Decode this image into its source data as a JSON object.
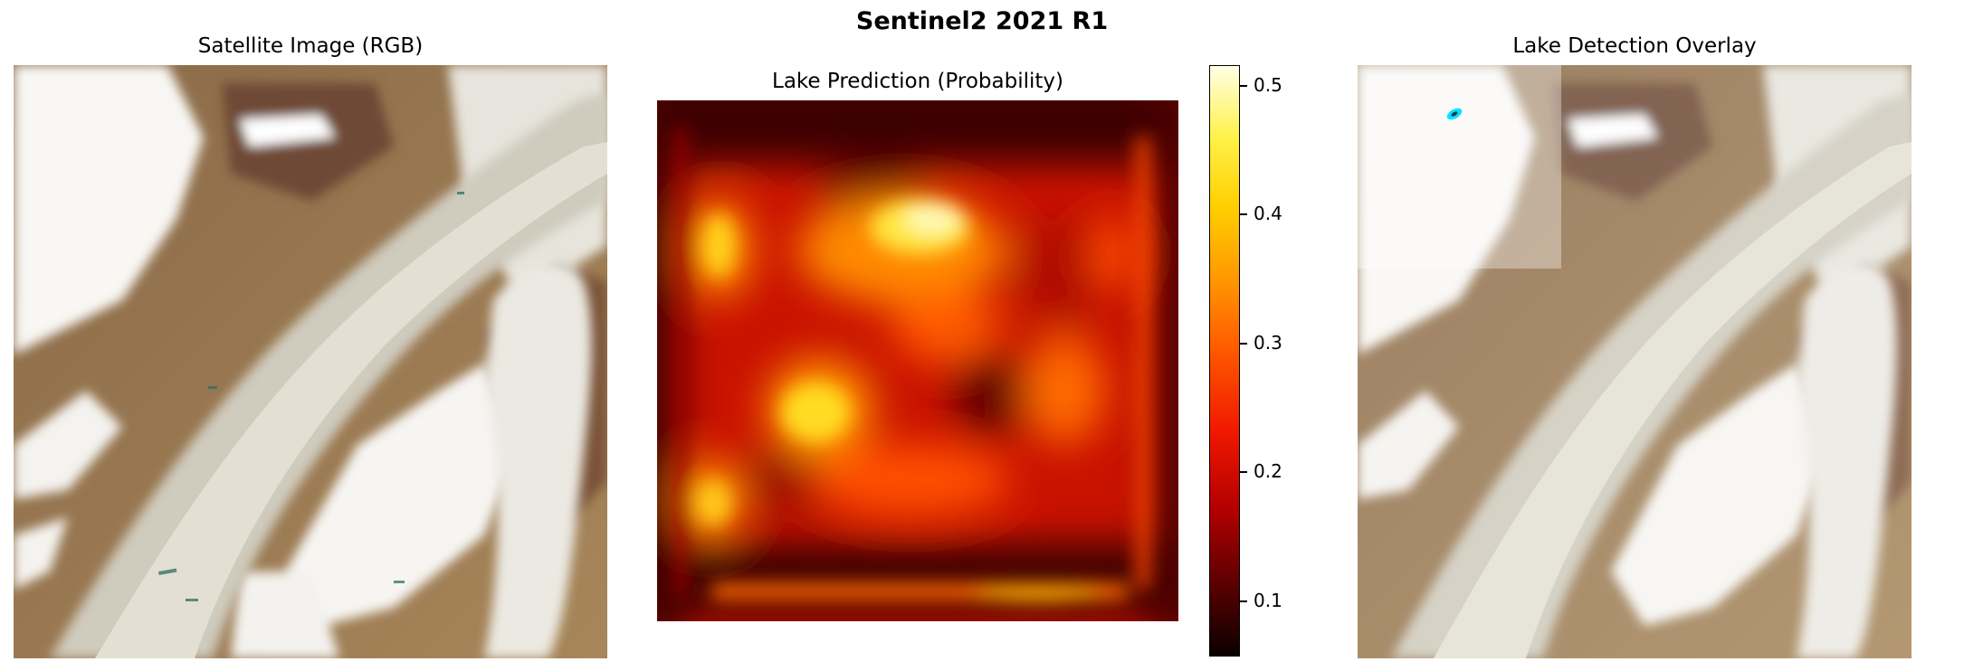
{
  "figure": {
    "title": "Sentinel2 2021 R1"
  },
  "panels": {
    "rgb": {
      "title": "Satellite Image (RGB)"
    },
    "prediction": {
      "title": "Lake Prediction (Probability)"
    },
    "overlay": {
      "title": "Lake Detection Overlay"
    }
  },
  "chart_data": [
    {
      "type": "image",
      "title": "Satellite Image (RGB)"
    },
    {
      "type": "heatmap",
      "title": "Lake Prediction (Probability)",
      "colormap": "hot",
      "colorbar": {
        "ticks": [
          "0.1",
          "0.2",
          "0.3",
          "0.4",
          "0.5"
        ],
        "tick_values": [
          0.1,
          0.2,
          0.3,
          0.4,
          0.5
        ],
        "range": [
          0.055,
          0.515
        ]
      },
      "hotspots": [
        {
          "region": "upper-center",
          "value": 0.5
        },
        {
          "region": "left-center",
          "value": 0.42
        },
        {
          "region": "left-upper",
          "value": 0.4
        },
        {
          "region": "left-lower",
          "value": 0.38
        },
        {
          "region": "center",
          "value": 0.32
        },
        {
          "region": "bottom-edge",
          "value": 0.34
        }
      ]
    },
    {
      "type": "image",
      "title": "Lake Detection Overlay",
      "detected_lake_color": "#00e5ff"
    }
  ]
}
